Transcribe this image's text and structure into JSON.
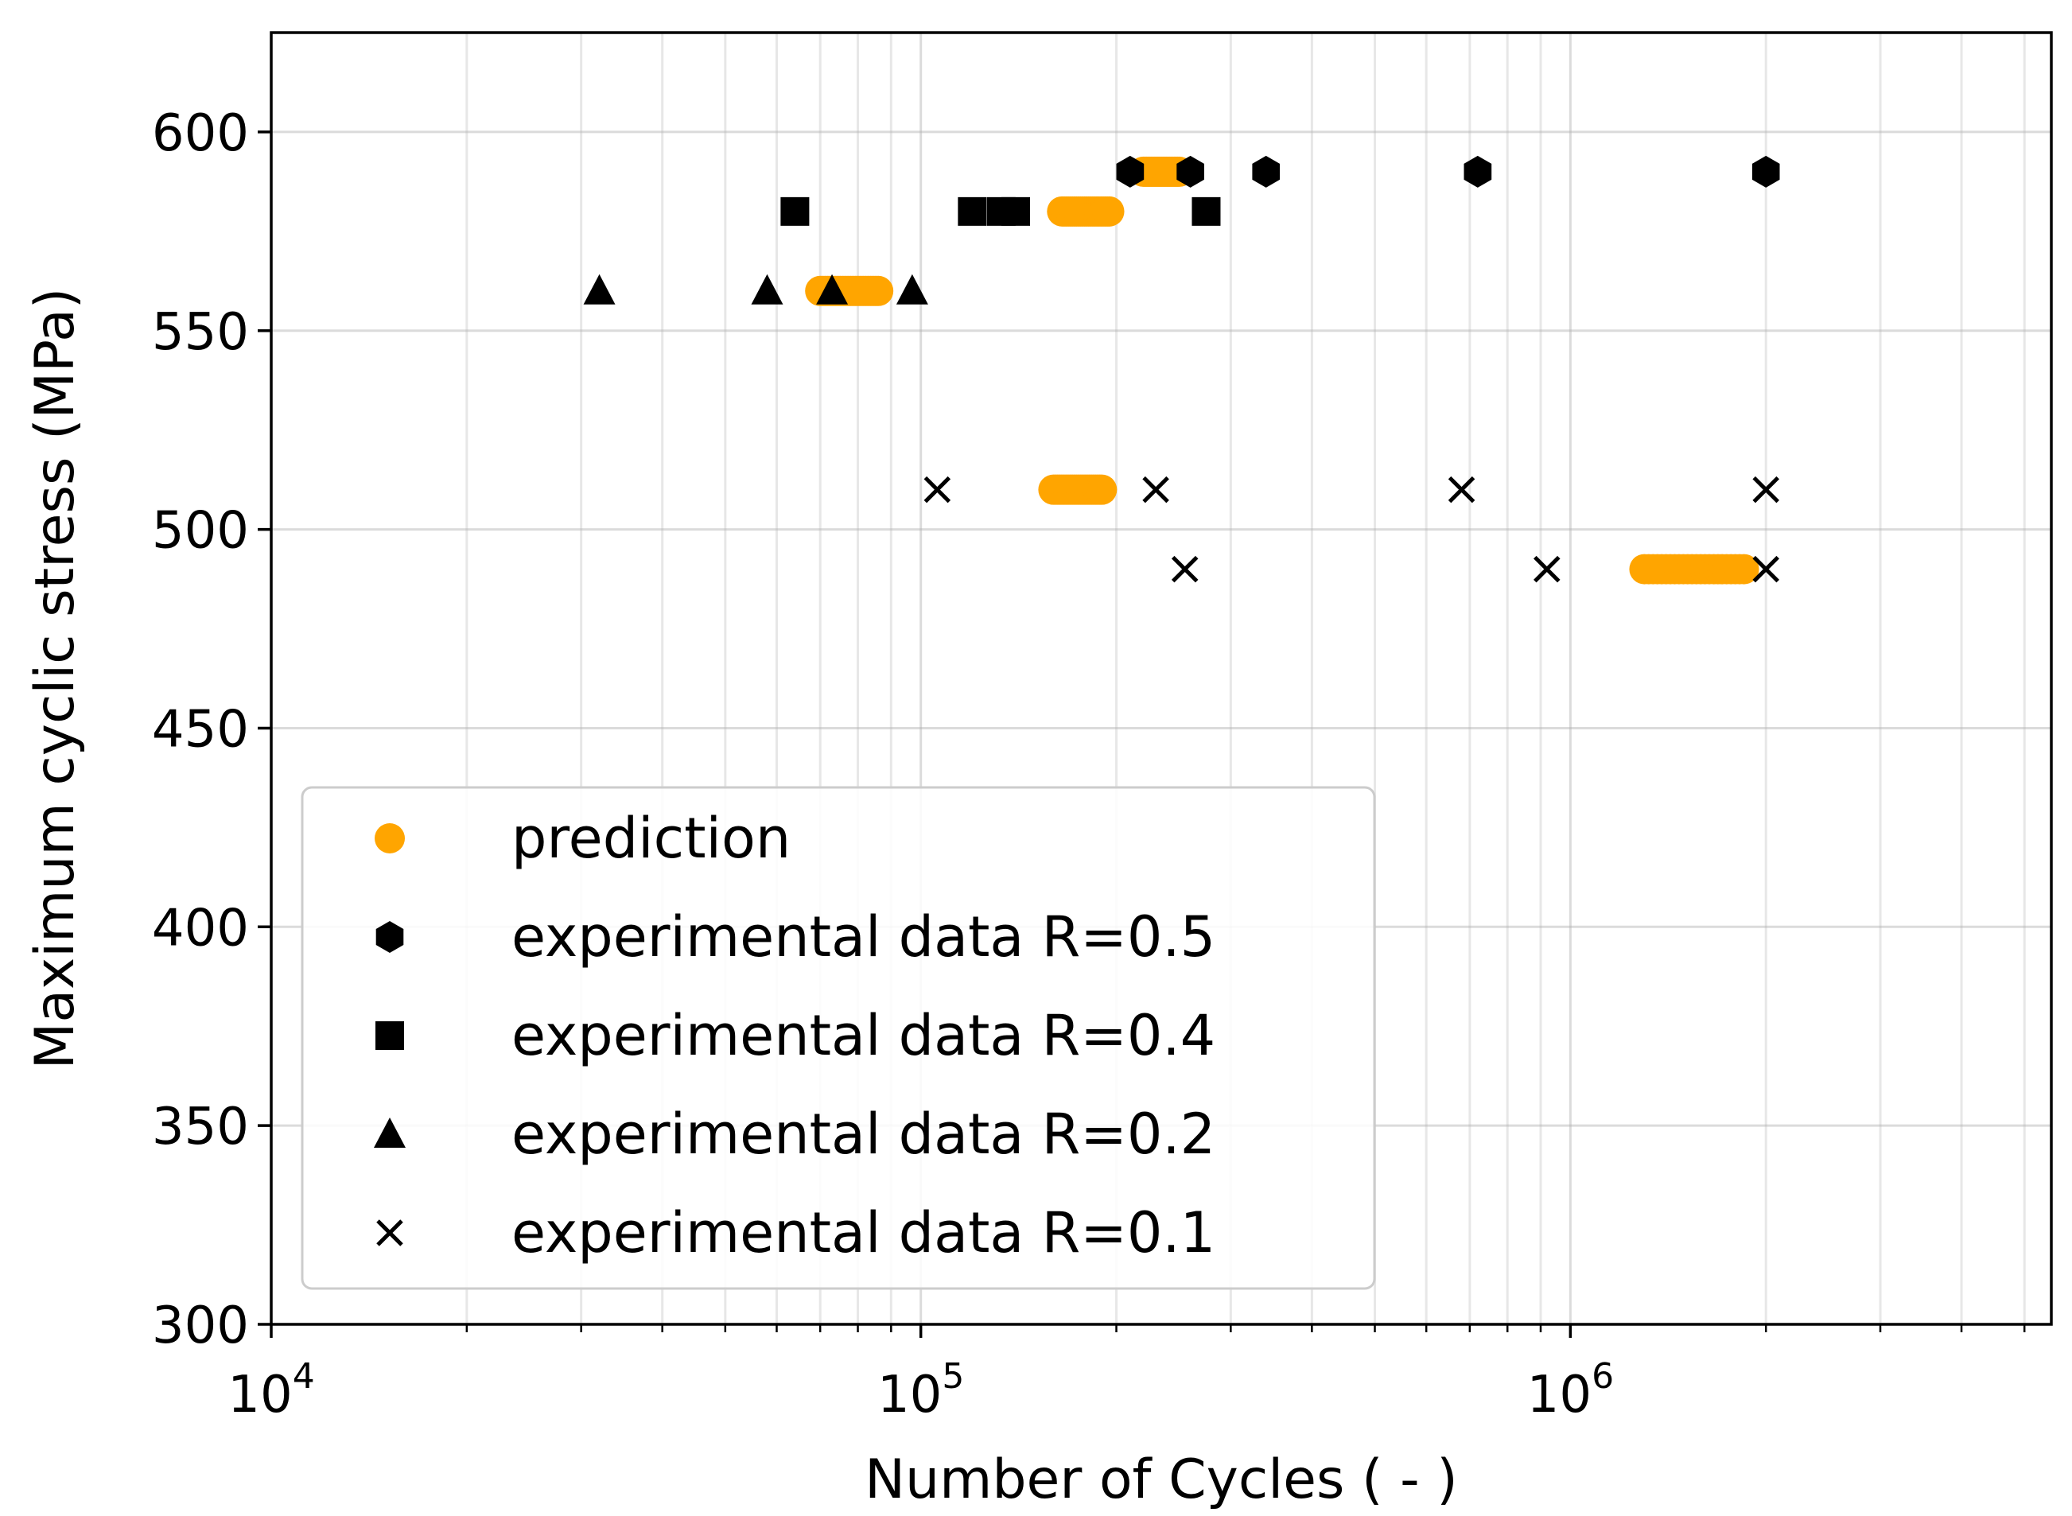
{
  "chart_data": {
    "type": "scatter",
    "x_scale": "log",
    "xlim": [
      10000,
      5500000
    ],
    "ylim": [
      300,
      625
    ],
    "xlabel": "Number of Cycles ( - )",
    "ylabel": "Maximum cyclic stress (MPa)",
    "grid": true,
    "legend_position": "lower-left",
    "x_ticks": [
      {
        "value": 10000,
        "base": "10",
        "exp": "4"
      },
      {
        "value": 100000,
        "base": "10",
        "exp": "5"
      },
      {
        "value": 1000000,
        "base": "10",
        "exp": "6"
      }
    ],
    "y_ticks": [
      300,
      350,
      400,
      450,
      500,
      550,
      600
    ],
    "series": [
      {
        "name": "prediction",
        "marker": "circle",
        "color": "#FFA500",
        "clusters": [
          {
            "y": 590,
            "x_from": 220000,
            "x_to": 250000
          },
          {
            "y": 580,
            "x_from": 165000,
            "x_to": 195000
          },
          {
            "y": 560,
            "x_from": 70000,
            "x_to": 86000
          },
          {
            "y": 510,
            "x_from": 160000,
            "x_to": 190000
          },
          {
            "y": 490,
            "x_from": 1300000,
            "x_to": 1850000
          }
        ]
      },
      {
        "name": "experimental data R=0.5",
        "marker": "hexagon",
        "color": "#000000",
        "points": [
          {
            "x": 210000,
            "y": 590
          },
          {
            "x": 260000,
            "y": 590
          },
          {
            "x": 340000,
            "y": 590
          },
          {
            "x": 720000,
            "y": 590
          },
          {
            "x": 2000000,
            "y": 590
          }
        ]
      },
      {
        "name": "experimental data R=0.4",
        "marker": "square",
        "color": "#000000",
        "points": [
          {
            "x": 64000,
            "y": 580
          },
          {
            "x": 120000,
            "y": 580
          },
          {
            "x": 133000,
            "y": 580
          },
          {
            "x": 140000,
            "y": 580
          },
          {
            "x": 275000,
            "y": 580
          }
        ]
      },
      {
        "name": "experimental data R=0.2",
        "marker": "triangle",
        "color": "#000000",
        "points": [
          {
            "x": 32000,
            "y": 560
          },
          {
            "x": 58000,
            "y": 560
          },
          {
            "x": 73000,
            "y": 560
          },
          {
            "x": 97000,
            "y": 560
          }
        ]
      },
      {
        "name": "experimental data R=0.1",
        "marker": "x",
        "color": "#000000",
        "points": [
          {
            "x": 106000,
            "y": 510
          },
          {
            "x": 230000,
            "y": 510
          },
          {
            "x": 680000,
            "y": 510
          },
          {
            "x": 2000000,
            "y": 510
          },
          {
            "x": 255000,
            "y": 490
          },
          {
            "x": 920000,
            "y": 490
          },
          {
            "x": 2000000,
            "y": 490
          }
        ]
      }
    ]
  }
}
